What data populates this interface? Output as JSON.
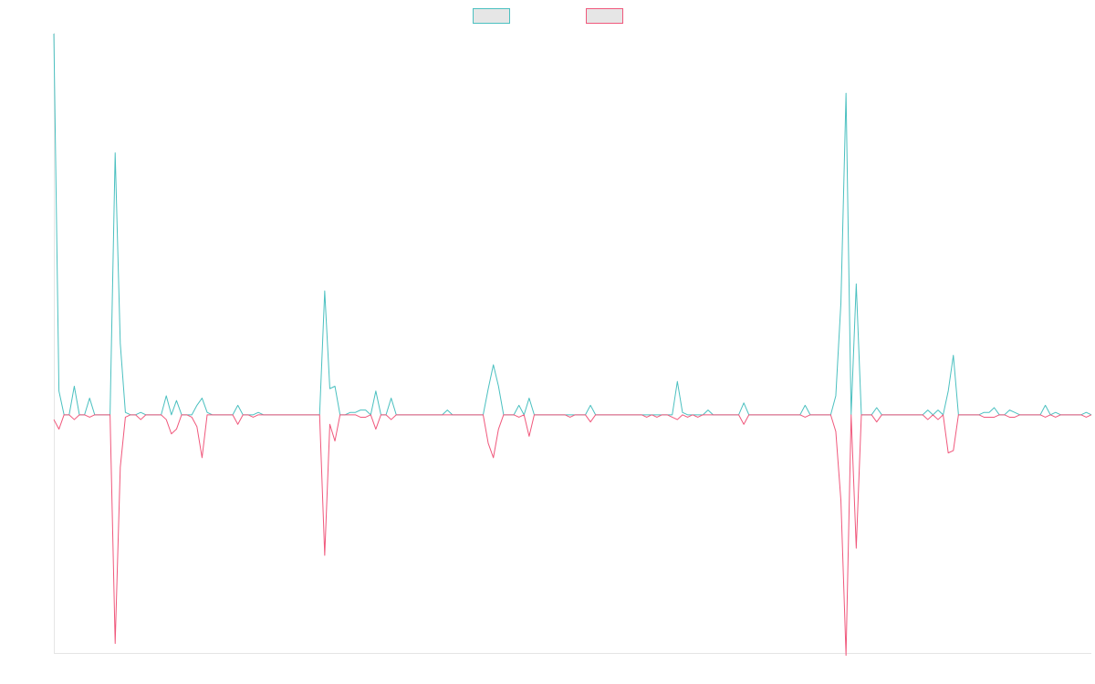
{
  "chart_data": {
    "type": "line",
    "title": "",
    "xlabel": "",
    "ylabel": "",
    "grid": false,
    "legend_position": "top-center",
    "ylim": [
      -1,
      1.6
    ],
    "series": [
      {
        "color": "#4bc0c0",
        "fill": "#e6e6e6",
        "values": [
          1.6,
          0.1,
          0.0,
          0.0,
          0.12,
          0.0,
          0.0,
          0.07,
          0.0,
          0.0,
          0.0,
          0.0,
          1.1,
          0.3,
          0.01,
          0.0,
          0.0,
          0.01,
          0.0,
          0.0,
          0.0,
          0.0,
          0.08,
          0.0,
          0.06,
          0.0,
          0.0,
          0.0,
          0.04,
          0.07,
          0.01,
          0.0,
          0.0,
          0.0,
          0.0,
          0.0,
          0.04,
          0.0,
          0.0,
          0.0,
          0.01,
          0.0,
          0.0,
          0.0,
          0.0,
          0.0,
          0.0,
          0.0,
          0.0,
          0.0,
          0.0,
          0.0,
          0.0,
          0.52,
          0.11,
          0.12,
          0.0,
          0.0,
          0.01,
          0.01,
          0.02,
          0.02,
          0.0,
          0.1,
          0.0,
          0.0,
          0.07,
          0.0,
          0.0,
          0.0,
          0.0,
          0.0,
          0.0,
          0.0,
          0.0,
          0.0,
          0.0,
          0.02,
          0.0,
          0.0,
          0.0,
          0.0,
          0.0,
          0.0,
          0.0,
          0.11,
          0.21,
          0.12,
          0.0,
          0.0,
          0.0,
          0.04,
          0.0,
          0.07,
          0.0,
          0.0,
          0.0,
          0.0,
          0.0,
          0.0,
          0.0,
          0.0,
          0.0,
          0.0,
          0.0,
          0.04,
          0.0,
          0.0,
          0.0,
          0.0,
          0.0,
          0.0,
          0.0,
          0.0,
          0.0,
          0.0,
          0.0,
          0.0,
          0.0,
          0.0,
          0.0,
          0.0,
          0.14,
          0.01,
          0.0,
          0.0,
          0.0,
          0.0,
          0.02,
          0.0,
          0.0,
          0.0,
          0.0,
          0.0,
          0.0,
          0.05,
          0.0,
          0.0,
          0.0,
          0.0,
          0.0,
          0.0,
          0.0,
          0.0,
          0.0,
          0.0,
          0.0,
          0.04,
          0.0,
          0.0,
          0.0,
          0.0,
          0.0,
          0.08,
          0.47,
          1.35,
          0.0,
          0.55,
          0.0,
          0.0,
          0.0,
          0.03,
          0.0,
          0.0,
          0.0,
          0.0,
          0.0,
          0.0,
          0.0,
          0.0,
          0.0,
          0.02,
          0.0,
          0.02,
          0.0,
          0.1,
          0.25,
          0.0,
          0.0,
          0.0,
          0.0,
          0.0,
          0.01,
          0.01,
          0.03,
          0.0,
          0.0,
          0.02,
          0.01,
          0.0,
          0.0,
          0.0,
          0.0,
          0.0,
          0.04,
          0.0,
          0.01,
          0.0,
          0.0,
          0.0,
          0.0,
          0.0,
          0.01,
          0.0
        ]
      },
      {
        "color": "#f0587c",
        "fill": "#e6e6e6",
        "values": [
          -0.02,
          -0.06,
          0.0,
          0.0,
          -0.02,
          0.0,
          0.0,
          -0.01,
          0.0,
          0.0,
          0.0,
          0.0,
          -0.96,
          -0.22,
          -0.01,
          0.0,
          0.0,
          -0.02,
          0.0,
          0.0,
          0.0,
          0.0,
          -0.02,
          -0.08,
          -0.06,
          0.0,
          0.0,
          -0.01,
          -0.05,
          -0.18,
          0.0,
          0.0,
          0.0,
          0.0,
          0.0,
          0.0,
          -0.04,
          0.0,
          0.0,
          -0.01,
          0.0,
          0.0,
          0.0,
          0.0,
          0.0,
          0.0,
          0.0,
          0.0,
          0.0,
          0.0,
          0.0,
          0.0,
          0.0,
          -0.59,
          -0.04,
          -0.11,
          0.0,
          0.0,
          0.0,
          0.0,
          -0.01,
          -0.01,
          0.0,
          -0.06,
          0.0,
          0.0,
          -0.02,
          0.0,
          0.0,
          0.0,
          0.0,
          0.0,
          0.0,
          0.0,
          0.0,
          0.0,
          0.0,
          0.0,
          0.0,
          0.0,
          0.0,
          0.0,
          0.0,
          0.0,
          0.0,
          -0.12,
          -0.18,
          -0.06,
          0.0,
          0.0,
          0.0,
          -0.01,
          0.0,
          -0.09,
          0.0,
          0.0,
          0.0,
          0.0,
          0.0,
          0.0,
          0.0,
          -0.01,
          0.0,
          0.0,
          0.0,
          -0.03,
          0.0,
          0.0,
          0.0,
          0.0,
          0.0,
          0.0,
          0.0,
          0.0,
          0.0,
          0.0,
          -0.01,
          0.0,
          -0.01,
          0.0,
          0.0,
          -0.01,
          -0.02,
          0.0,
          -0.01,
          0.0,
          -0.01,
          0.0,
          0.0,
          0.0,
          0.0,
          0.0,
          0.0,
          0.0,
          0.0,
          -0.04,
          0.0,
          0.0,
          0.0,
          0.0,
          0.0,
          0.0,
          0.0,
          0.0,
          0.0,
          0.0,
          0.0,
          -0.01,
          0.0,
          0.0,
          0.0,
          0.0,
          0.0,
          -0.07,
          -0.36,
          -1.01,
          0.0,
          -0.56,
          0.0,
          0.0,
          0.0,
          -0.03,
          0.0,
          0.0,
          0.0,
          0.0,
          0.0,
          0.0,
          0.0,
          0.0,
          0.0,
          -0.02,
          0.0,
          -0.02,
          0.0,
          -0.16,
          -0.15,
          0.0,
          0.0,
          0.0,
          0.0,
          0.0,
          -0.01,
          -0.01,
          -0.01,
          0.0,
          0.0,
          -0.01,
          -0.01,
          0.0,
          0.0,
          0.0,
          0.0,
          0.0,
          -0.01,
          0.0,
          -0.01,
          0.0,
          0.0,
          0.0,
          0.0,
          0.0,
          -0.01,
          0.0
        ]
      }
    ]
  }
}
